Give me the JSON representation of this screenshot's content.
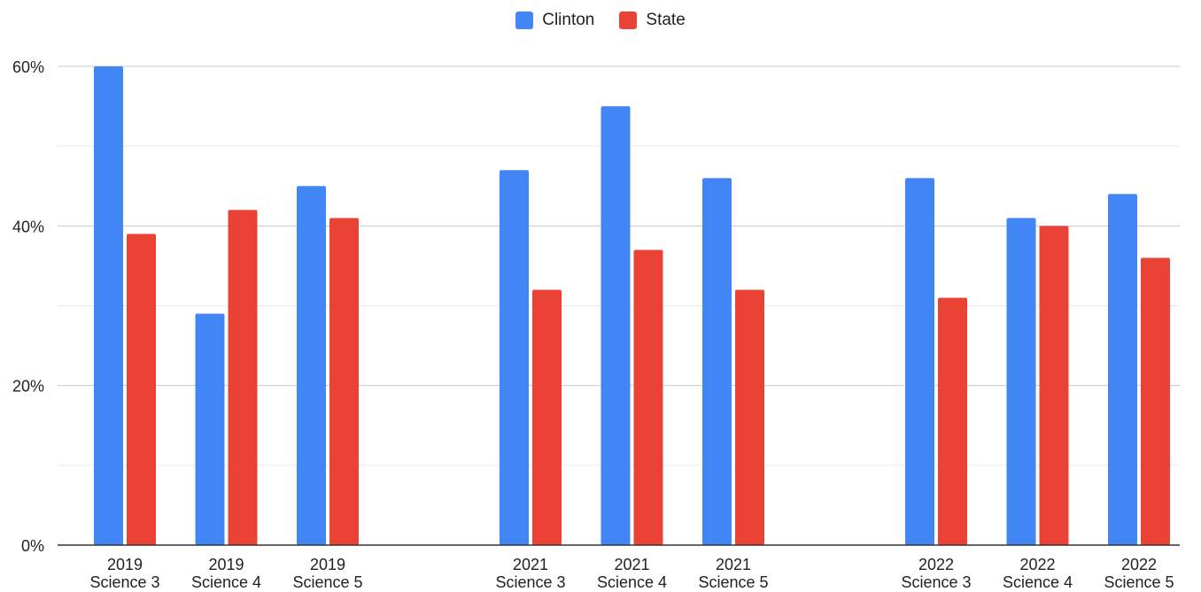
{
  "chart_data": {
    "type": "bar",
    "categories": [
      [
        "2019",
        "Science 3"
      ],
      [
        "2019",
        "Science 4"
      ],
      [
        "2019",
        "Science 5"
      ],
      [
        "2021",
        "Science 3"
      ],
      [
        "2021",
        "Science 4"
      ],
      [
        "2021",
        "Science  5"
      ],
      [
        "2022",
        "Science 3"
      ],
      [
        "2022",
        "Science 4"
      ],
      [
        "2022",
        "Science 5"
      ]
    ],
    "series": [
      {
        "name": "Clinton",
        "color": "#4285f4",
        "values": [
          60,
          29,
          45,
          47,
          55,
          46,
          46,
          41,
          44
        ]
      },
      {
        "name": "State",
        "color": "#ea4335",
        "values": [
          39,
          42,
          41,
          32,
          37,
          32,
          31,
          40,
          36
        ]
      }
    ],
    "ylim": [
      0,
      60
    ],
    "yticks": [
      0,
      20,
      40,
      60
    ],
    "ytick_labels": [
      "0%",
      "20%",
      "40%",
      "60%"
    ],
    "grid": true,
    "legend_position": "top-center"
  }
}
